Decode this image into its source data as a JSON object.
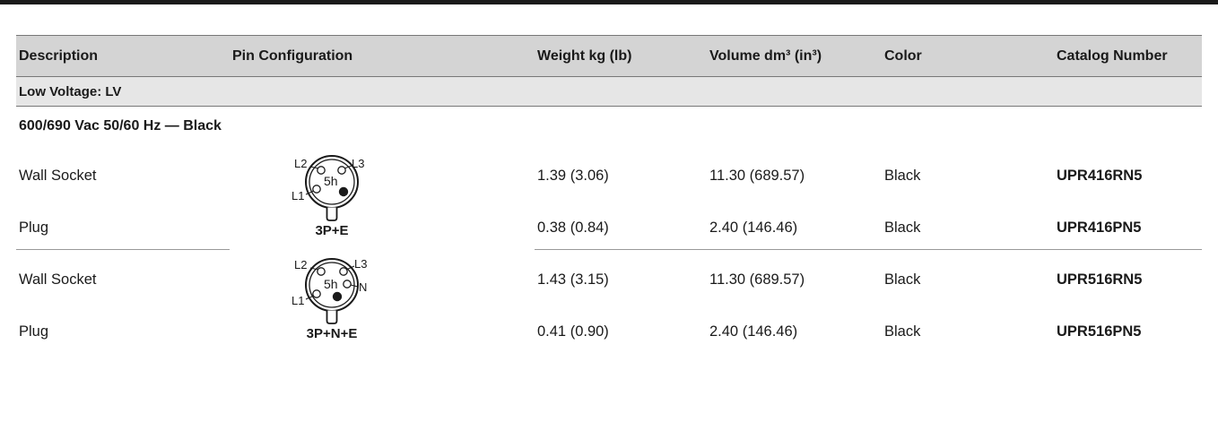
{
  "header": {
    "description": "Description",
    "pin_configuration": "Pin Configuration",
    "weight": "Weight kg (lb)",
    "volume": "Volume dm³ (in³)",
    "color": "Color",
    "catalog_number": "Catalog Number"
  },
  "section_label": "Low Voltage: LV",
  "group_label": "600/690 Vac 50/60 Hz — Black",
  "blocks": [
    {
      "pin_caption": "3P+E",
      "diagram": {
        "labels": [
          "L2",
          "L3",
          "L1"
        ],
        "center": "5h"
      },
      "rows": [
        {
          "description": "Wall Socket",
          "weight": "1.39 (3.06)",
          "volume": "11.30 (689.57)",
          "color": "Black",
          "catalog": "UPR416RN5"
        },
        {
          "description": "Plug",
          "weight": "0.38 (0.84)",
          "volume": "2.40 (146.46)",
          "color": "Black",
          "catalog": "UPR416PN5"
        }
      ]
    },
    {
      "pin_caption": "3P+N+E",
      "diagram": {
        "labels": [
          "L2",
          "L3",
          "N",
          "L1"
        ],
        "center": "5h"
      },
      "rows": [
        {
          "description": "Wall Socket",
          "weight": "1.43 (3.15)",
          "volume": "11.30 (689.57)",
          "color": "Black",
          "catalog": "UPR516RN5"
        },
        {
          "description": "Plug",
          "weight": "0.41 (0.90)",
          "volume": "2.40 (146.46)",
          "color": "Black",
          "catalog": "UPR516PN5"
        }
      ]
    }
  ]
}
